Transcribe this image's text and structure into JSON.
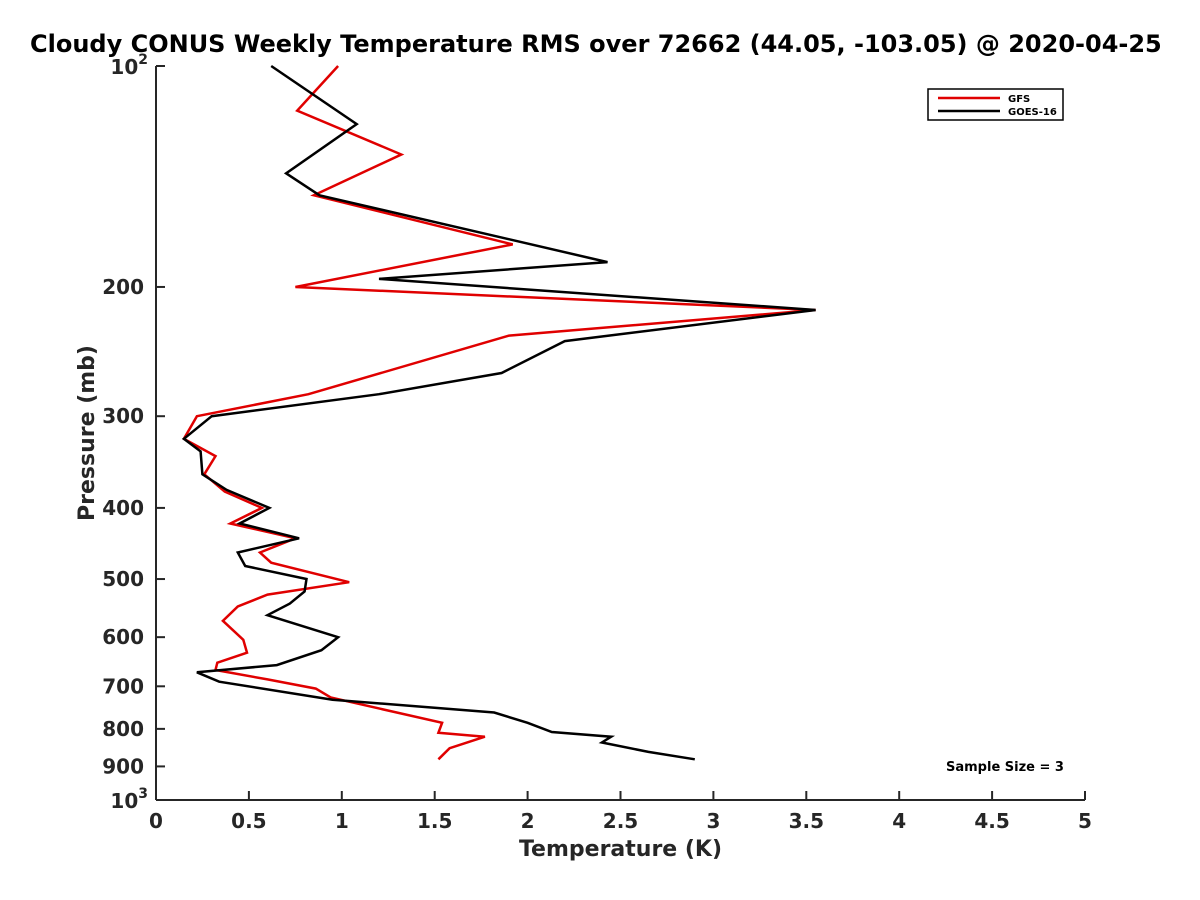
{
  "chart_data": {
    "type": "line",
    "title": "Cloudy CONUS Weekly Temperature RMS over 72662 (44.05, -103.05) @ 2020-04-25",
    "xlabel": "Temperature (K)",
    "ylabel": "Pressure (mb)",
    "xlim": [
      0,
      5
    ],
    "ylim": [
      100,
      1000
    ],
    "y_scale": "log",
    "y_reversed": true,
    "grid": false,
    "legend_position": "top-right",
    "x_ticks": [
      "0",
      "0.5",
      "1",
      "1.5",
      "2",
      "2.5",
      "3",
      "3.5",
      "4",
      "4.5",
      "5"
    ],
    "y_ticks": [
      {
        "value": 100,
        "label": "10^2",
        "base": "10",
        "exp": "2"
      },
      {
        "value": 200,
        "label": "200"
      },
      {
        "value": 300,
        "label": "300"
      },
      {
        "value": 400,
        "label": "400"
      },
      {
        "value": 500,
        "label": "500"
      },
      {
        "value": 600,
        "label": "600"
      },
      {
        "value": 700,
        "label": "700"
      },
      {
        "value": 800,
        "label": "800"
      },
      {
        "value": 900,
        "label": "900"
      },
      {
        "value": 1000,
        "label": "10^3",
        "base": "10",
        "exp": "3"
      }
    ],
    "annotation": "Sample Size = 3",
    "series": [
      {
        "name": "GFS",
        "color": "#e00000",
        "points": [
          [
            0.98,
            100
          ],
          [
            0.76,
            115
          ],
          [
            1.32,
            132
          ],
          [
            0.85,
            150
          ],
          [
            1.92,
            175
          ],
          [
            0.75,
            200
          ],
          [
            3.55,
            215
          ],
          [
            1.9,
            233
          ],
          [
            0.82,
            280
          ],
          [
            0.22,
            300
          ],
          [
            0.15,
            322
          ],
          [
            0.32,
            340
          ],
          [
            0.26,
            360
          ],
          [
            0.37,
            380
          ],
          [
            0.57,
            400
          ],
          [
            0.4,
            420
          ],
          [
            0.75,
            440
          ],
          [
            0.56,
            460
          ],
          [
            0.62,
            475
          ],
          [
            1.04,
            505
          ],
          [
            0.6,
            525
          ],
          [
            0.44,
            545
          ],
          [
            0.36,
            570
          ],
          [
            0.47,
            605
          ],
          [
            0.49,
            630
          ],
          [
            0.33,
            650
          ],
          [
            0.32,
            665
          ],
          [
            0.6,
            685
          ],
          [
            0.86,
            705
          ],
          [
            0.94,
            725
          ],
          [
            1.54,
            785
          ],
          [
            1.52,
            810
          ],
          [
            1.77,
            820
          ],
          [
            1.58,
            850
          ],
          [
            1.52,
            880
          ]
        ]
      },
      {
        "name": "GOES-16",
        "color": "#000000",
        "points": [
          [
            0.62,
            100
          ],
          [
            1.08,
            120
          ],
          [
            0.7,
            140
          ],
          [
            0.88,
            150
          ],
          [
            2.43,
            185
          ],
          [
            1.2,
            195
          ],
          [
            3.55,
            215
          ],
          [
            2.2,
            237
          ],
          [
            1.86,
            262
          ],
          [
            1.2,
            280
          ],
          [
            0.3,
            300
          ],
          [
            0.15,
            322
          ],
          [
            0.24,
            335
          ],
          [
            0.25,
            360
          ],
          [
            0.38,
            378
          ],
          [
            0.61,
            400
          ],
          [
            0.45,
            420
          ],
          [
            0.77,
            440
          ],
          [
            0.44,
            460
          ],
          [
            0.48,
            480
          ],
          [
            0.81,
            500
          ],
          [
            0.8,
            520
          ],
          [
            0.72,
            540
          ],
          [
            0.6,
            560
          ],
          [
            0.98,
            600
          ],
          [
            0.89,
            625
          ],
          [
            0.65,
            655
          ],
          [
            0.22,
            670
          ],
          [
            0.34,
            690
          ],
          [
            0.95,
            730
          ],
          [
            1.82,
            760
          ],
          [
            2.0,
            785
          ],
          [
            2.13,
            808
          ],
          [
            2.45,
            820
          ],
          [
            2.4,
            835
          ],
          [
            2.65,
            860
          ],
          [
            2.9,
            880
          ]
        ]
      }
    ]
  }
}
